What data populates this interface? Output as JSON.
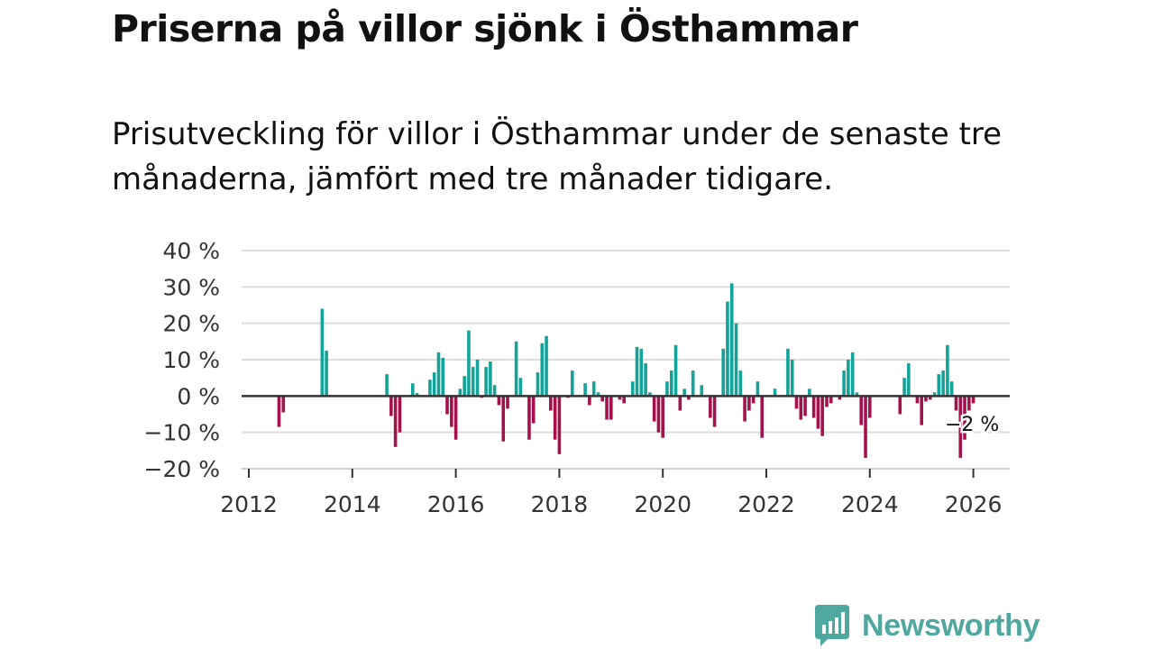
{
  "title": "Priserna på villor sjönk i Östhammar",
  "subtitle": "Prisutveckling för villor i Östhammar under de senaste tre månaderna, jämfört med tre månader tidigare.",
  "brand": "Newsworthy",
  "colors": {
    "positive": "#12a39a",
    "negative": "#a4124b",
    "grid": "#dddddd",
    "axis": "#333333",
    "brand": "#4fa8a0"
  },
  "chart_data": {
    "type": "bar",
    "title": "Priserna på villor sjönk i Östhammar",
    "xlabel": "",
    "ylabel": "",
    "ylim": [
      -20,
      40
    ],
    "xlim": [
      2012.0,
      2026.75
    ],
    "y_ticks": [
      -20,
      -10,
      0,
      10,
      20,
      30,
      40
    ],
    "y_tick_labels": [
      "−20 %",
      "−10 %",
      "0 %",
      "10 %",
      "20 %",
      "30 %",
      "40 %"
    ],
    "x_ticks": [
      2012,
      2014,
      2016,
      2018,
      2020,
      2022,
      2024,
      2026
    ],
    "x_tick_labels": [
      "2012",
      "2014",
      "2016",
      "2018",
      "2020",
      "2022",
      "2024",
      "2026"
    ],
    "annotation": {
      "text": "−2 %",
      "x": 2025.83,
      "value": -2
    },
    "series": [
      {
        "name": "Prisutveckling",
        "values": [
          [
            2012.583,
            -8.5
          ],
          [
            2012.667,
            -4.5
          ],
          [
            2013.417,
            24
          ],
          [
            2013.5,
            12.5
          ],
          [
            2014.667,
            6
          ],
          [
            2014.75,
            -5.5
          ],
          [
            2014.833,
            -14
          ],
          [
            2014.917,
            -10
          ],
          [
            2015.167,
            3.5
          ],
          [
            2015.25,
            0.8
          ],
          [
            2015.5,
            4.5
          ],
          [
            2015.583,
            6.5
          ],
          [
            2015.667,
            12
          ],
          [
            2015.75,
            10.5
          ],
          [
            2015.833,
            -5
          ],
          [
            2015.917,
            -8.5
          ],
          [
            2016.0,
            -12
          ],
          [
            2016.083,
            2
          ],
          [
            2016.167,
            5.5
          ],
          [
            2016.25,
            18
          ],
          [
            2016.333,
            8
          ],
          [
            2016.417,
            10
          ],
          [
            2016.5,
            -0.5
          ],
          [
            2016.583,
            8
          ],
          [
            2016.667,
            9.5
          ],
          [
            2016.75,
            3
          ],
          [
            2016.833,
            -2.5
          ],
          [
            2016.917,
            -12.5
          ],
          [
            2017.0,
            -3.5
          ],
          [
            2017.167,
            15
          ],
          [
            2017.25,
            5
          ],
          [
            2017.417,
            -12
          ],
          [
            2017.5,
            -7.5
          ],
          [
            2017.583,
            6.5
          ],
          [
            2017.667,
            14.5
          ],
          [
            2017.75,
            16.5
          ],
          [
            2017.833,
            -4
          ],
          [
            2017.917,
            -12
          ],
          [
            2018.0,
            -16
          ],
          [
            2018.167,
            -0.5
          ],
          [
            2018.25,
            7
          ],
          [
            2018.5,
            3.5
          ],
          [
            2018.583,
            -2.5
          ],
          [
            2018.667,
            4
          ],
          [
            2018.75,
            1
          ],
          [
            2018.833,
            -1.5
          ],
          [
            2018.917,
            -6.5
          ],
          [
            2019.0,
            -6.5
          ],
          [
            2019.167,
            -1
          ],
          [
            2019.25,
            -2
          ],
          [
            2019.417,
            4
          ],
          [
            2019.5,
            13.5
          ],
          [
            2019.583,
            13
          ],
          [
            2019.667,
            9
          ],
          [
            2019.75,
            1
          ],
          [
            2019.833,
            -7
          ],
          [
            2019.917,
            -10
          ],
          [
            2020.0,
            -11.5
          ],
          [
            2020.083,
            4
          ],
          [
            2020.167,
            7
          ],
          [
            2020.25,
            14
          ],
          [
            2020.333,
            -4
          ],
          [
            2020.417,
            2
          ],
          [
            2020.5,
            -1
          ],
          [
            2020.583,
            7
          ],
          [
            2020.75,
            3
          ],
          [
            2020.917,
            -6
          ],
          [
            2021.0,
            -8.5
          ],
          [
            2021.167,
            13
          ],
          [
            2021.25,
            26
          ],
          [
            2021.333,
            31
          ],
          [
            2021.417,
            20
          ],
          [
            2021.5,
            7
          ],
          [
            2021.583,
            -7
          ],
          [
            2021.667,
            -4
          ],
          [
            2021.75,
            -2
          ],
          [
            2021.833,
            4
          ],
          [
            2021.917,
            -11.5
          ],
          [
            2022.167,
            2
          ],
          [
            2022.417,
            13
          ],
          [
            2022.5,
            10
          ],
          [
            2022.583,
            -3.5
          ],
          [
            2022.667,
            -6.5
          ],
          [
            2022.75,
            -5.5
          ],
          [
            2022.833,
            2
          ],
          [
            2022.917,
            -6
          ],
          [
            2023.0,
            -9
          ],
          [
            2023.083,
            -11
          ],
          [
            2023.167,
            -3
          ],
          [
            2023.25,
            -2
          ],
          [
            2023.417,
            -1
          ],
          [
            2023.5,
            7
          ],
          [
            2023.583,
            10
          ],
          [
            2023.667,
            12
          ],
          [
            2023.75,
            1
          ],
          [
            2023.833,
            -8
          ],
          [
            2023.917,
            -17
          ],
          [
            2024.0,
            -6
          ],
          [
            2024.583,
            -5
          ],
          [
            2024.667,
            5
          ],
          [
            2024.75,
            9
          ],
          [
            2024.917,
            -2
          ],
          [
            2025.0,
            -8
          ],
          [
            2025.083,
            -1.5
          ],
          [
            2025.167,
            -1
          ],
          [
            2025.25,
            1
          ],
          [
            2025.333,
            6
          ],
          [
            2025.417,
            7
          ],
          [
            2025.5,
            14
          ],
          [
            2025.583,
            4
          ],
          [
            2025.667,
            -4
          ],
          [
            2025.75,
            -17
          ],
          [
            2025.833,
            -12
          ],
          [
            2025.917,
            -4
          ],
          [
            2026.0,
            -2
          ]
        ]
      }
    ]
  }
}
